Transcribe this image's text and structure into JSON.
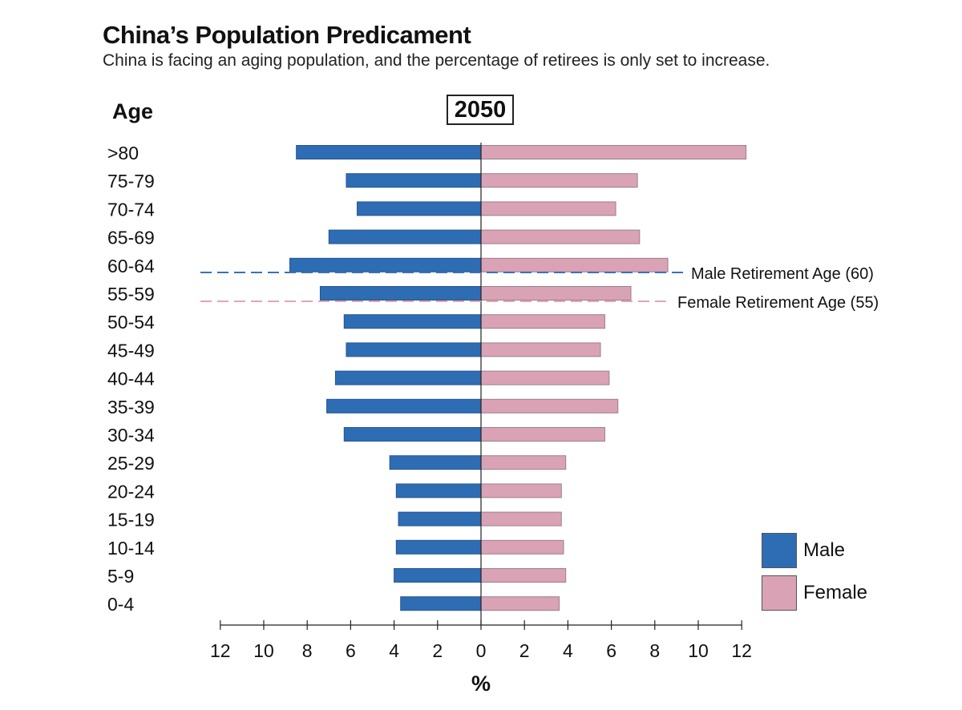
{
  "title": "China’s Population Predicament",
  "subtitle": "China is facing an aging population, and the percentage of retirees is only set to increase.",
  "year": "2050",
  "age_label": "Age",
  "x_unit": "%",
  "colors": {
    "male": "#2e6db4",
    "female": "#d9a3b5",
    "male_line": "#3a72b6",
    "female_line": "#e2a6b6"
  },
  "legend": {
    "male": "Male",
    "female": "Female"
  },
  "annotations": [
    {
      "label": "Male Retirement Age (60)",
      "at_age": "60-64",
      "series": "Male"
    },
    {
      "label": "Female Retirement Age (55)",
      "at_age": "55-59",
      "series": "Female"
    }
  ],
  "chart_data": {
    "type": "bar",
    "orientation": "horizontal population pyramid",
    "categories": [
      ">80",
      "75-79",
      "70-74",
      "65-69",
      "60-64",
      "55-59",
      "50-54",
      "45-49",
      "40-44",
      "35-39",
      "30-34",
      "25-29",
      "20-24",
      "15-19",
      "10-14",
      "5-9",
      "0-4"
    ],
    "series": [
      {
        "name": "Male",
        "values": [
          8.5,
          6.2,
          5.7,
          7.0,
          8.8,
          7.4,
          6.3,
          6.2,
          6.7,
          7.1,
          6.3,
          4.2,
          3.9,
          3.8,
          3.9,
          4.0,
          3.7
        ]
      },
      {
        "name": "Female",
        "values": [
          12.2,
          7.2,
          6.2,
          7.3,
          8.6,
          6.9,
          5.7,
          5.5,
          5.9,
          6.3,
          5.7,
          3.9,
          3.7,
          3.7,
          3.8,
          3.9,
          3.6
        ]
      }
    ],
    "x_ticks": [
      "12",
      "10",
      "8",
      "6",
      "4",
      "2",
      "0",
      "2",
      "4",
      "6",
      "8",
      "10",
      "12"
    ],
    "xlim": [
      -12,
      12
    ],
    "xlabel": "%",
    "ylabel": "Age",
    "grid": false,
    "legend_position": "bottom-right"
  }
}
